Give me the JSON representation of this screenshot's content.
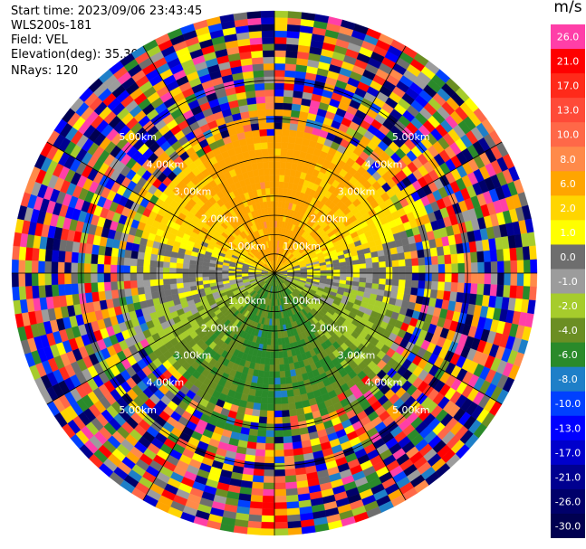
{
  "header": {
    "start_time": "Start time: 2023/09/06 23:43:45",
    "device": "WLS200s-181",
    "field": "Field: VEL",
    "elevation": "Elevation(deg): 35.30",
    "nrays": "NRays: 120"
  },
  "chart_data": {
    "type": "heatmap",
    "projection": "polar-ppi",
    "field": "VEL",
    "units": "m/s",
    "n_rays": 120,
    "n_gates": 40,
    "max_range_km": 6.8,
    "grid": true,
    "range_rings_km": [
      0.5,
      1.0,
      1.5,
      2.0,
      3.0,
      4.0,
      5.0
    ],
    "range_labels": [
      "1.00km",
      "2.00km",
      "3.00km",
      "4.00km",
      "5.00km"
    ],
    "label_rings_km": [
      1.0,
      2.0,
      3.0,
      4.0,
      5.0
    ],
    "colorbar": {
      "ticks": [
        "26.0",
        "21.0",
        "17.0",
        "13.0",
        "10.0",
        "8.0",
        "6.0",
        "2.0",
        "1.0",
        "0.0",
        "-1.0",
        "-2.0",
        "-4.0",
        "-6.0",
        "-8.0",
        "-10.0",
        "-13.0",
        "-17.0",
        "-21.0",
        "-26.0",
        "-30.0"
      ],
      "colors": [
        "#ff3fa8",
        "#ff0000",
        "#ff2a1a",
        "#ff4a38",
        "#ff6848",
        "#ff8a4a",
        "#ffa500",
        "#ffd500",
        "#ffff00",
        "#6e6e6e",
        "#9c9c9c",
        "#a6cc2c",
        "#6b8e23",
        "#2a8a2a",
        "#1e7fc8",
        "#0040ff",
        "#0000ff",
        "#0000cc",
        "#000090",
        "#00006a",
        "#000050"
      ]
    },
    "description_pattern": {
      "north_sector_near": "positive velocities 2.0 to 8.0 (yellow/orange)",
      "south_sector_near": "negative velocities -2.0 to -8.0 (green)",
      "east_west_near": "around 0.0 (gray)",
      "far_range": "noisy, random colors"
    }
  }
}
